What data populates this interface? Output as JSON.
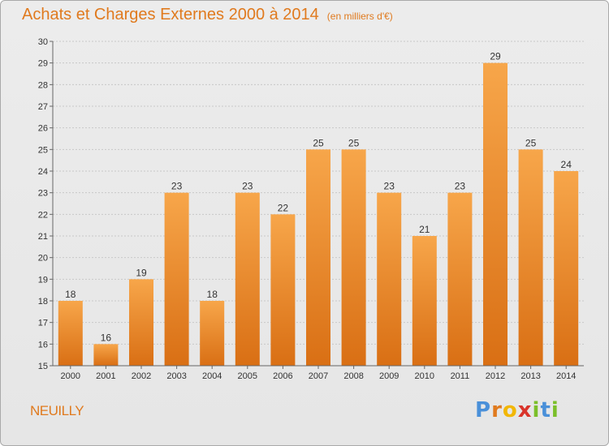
{
  "page": {
    "title": "Achats et Charges Externes 2000 à 2014",
    "unit": "(en milliers d'€)",
    "commune": "NEUILLY",
    "logo": {
      "text": "Proxiti",
      "letters": [
        {
          "char": "P",
          "color": "#4a90d9"
        },
        {
          "char": "r",
          "color": "#e07a1e"
        },
        {
          "char": "o",
          "color": "#f2b705"
        },
        {
          "char": "x",
          "color": "#d9342b"
        },
        {
          "char": "i",
          "color": "#7bbf2a"
        },
        {
          "char": "t",
          "color": "#4a90d9"
        },
        {
          "char": "i",
          "color": "#7bbf2a"
        }
      ]
    }
  },
  "chart_data": {
    "type": "bar",
    "title": "Achats et Charges Externes 2000 à 2014",
    "subtitle": "(en milliers d'€)",
    "xlabel": "",
    "ylabel": "",
    "categories": [
      "2000",
      "2001",
      "2002",
      "2003",
      "2004",
      "2005",
      "2006",
      "2007",
      "2008",
      "2009",
      "2010",
      "2011",
      "2012",
      "2013",
      "2014"
    ],
    "values": [
      18,
      16,
      19,
      23,
      18,
      23,
      22,
      25,
      25,
      23,
      21,
      23,
      29,
      25,
      24
    ],
    "data_labels": [
      "18",
      "16",
      "19",
      "23",
      "18",
      "23",
      "22",
      "25",
      "25",
      "23",
      "21",
      "23",
      "29",
      "25",
      "24"
    ],
    "ylim": [
      15,
      30
    ],
    "yticks": [
      15,
      16,
      17,
      18,
      19,
      20,
      21,
      22,
      23,
      24,
      25,
      26,
      27,
      28,
      29,
      30
    ],
    "grid": true,
    "legend": "none",
    "colors": {
      "bar_light": "#f7a64a",
      "bar_dark": "#d96f14",
      "grid": "#c8c8c8",
      "axis_text": "#333333",
      "title": "#e07a1e"
    }
  }
}
